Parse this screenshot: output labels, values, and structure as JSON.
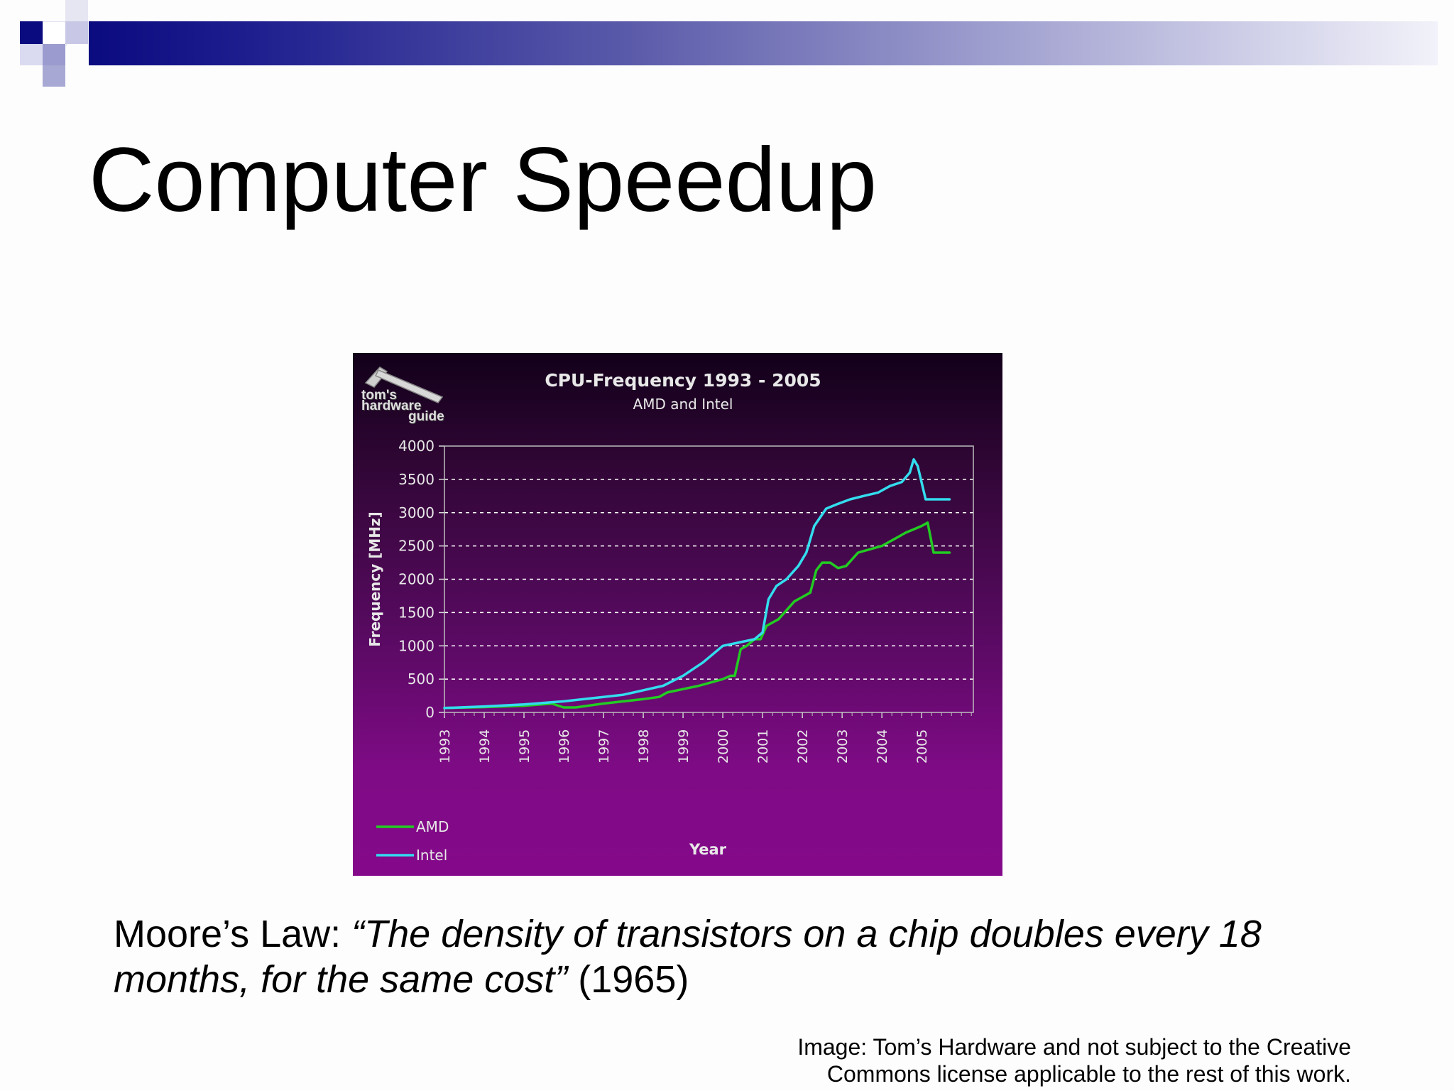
{
  "slide": {
    "title": "Computer Speedup",
    "moore_prefix": "Moore’s Law: ",
    "moore_quote": "“The density of transistors on a chip doubles every 18 months, for the same cost”",
    "moore_year": " (1965)",
    "credit_line1": "Image: Tom’s Hardware and not subject to the Creative",
    "credit_line2": "Commons license applicable to the rest of this work.",
    "accent_color": "#0b0b80"
  },
  "logo": {
    "line1": "tom's",
    "line2": "hardware",
    "line3": "guide"
  },
  "chart_data": {
    "type": "line",
    "title": "CPU-Frequency 1993 - 2005",
    "subtitle": "AMD and Intel",
    "xlabel": "Year",
    "ylabel": "Frequency [MHz]",
    "xlim": [
      1993,
      2006.3
    ],
    "ylim": [
      0,
      4000
    ],
    "y_ticks": [
      0,
      500,
      1000,
      1500,
      2000,
      2500,
      3000,
      3500,
      4000
    ],
    "x_ticks": [
      "1993",
      "1994",
      "1995",
      "1996",
      "1997",
      "1998",
      "1999",
      "2000",
      "2001",
      "2002",
      "2003",
      "2004",
      "2005"
    ],
    "grid": true,
    "legend_position": "bottom-left",
    "series": [
      {
        "name": "AMD",
        "color": "#22cc22",
        "points": [
          [
            1993.0,
            66
          ],
          [
            1994.0,
            80
          ],
          [
            1995.0,
            100
          ],
          [
            1995.7,
            133
          ],
          [
            1996.0,
            75
          ],
          [
            1996.3,
            75
          ],
          [
            1996.6,
            100
          ],
          [
            1997.0,
            133
          ],
          [
            1997.5,
            166
          ],
          [
            1998.0,
            200
          ],
          [
            1998.4,
            233
          ],
          [
            1998.6,
            300
          ],
          [
            1999.0,
            350
          ],
          [
            1999.4,
            400
          ],
          [
            1999.7,
            450
          ],
          [
            2000.0,
            500
          ],
          [
            2000.2,
            550
          ],
          [
            2000.3,
            550
          ],
          [
            2000.45,
            950
          ],
          [
            2000.6,
            1000
          ],
          [
            2000.8,
            1100
          ],
          [
            2000.95,
            1100
          ],
          [
            2001.1,
            1300
          ],
          [
            2001.4,
            1400
          ],
          [
            2001.6,
            1533
          ],
          [
            2001.8,
            1667
          ],
          [
            2002.0,
            1733
          ],
          [
            2002.2,
            1800
          ],
          [
            2002.35,
            2133
          ],
          [
            2002.5,
            2250
          ],
          [
            2002.7,
            2250
          ],
          [
            2002.9,
            2167
          ],
          [
            2003.1,
            2200
          ],
          [
            2003.4,
            2400
          ],
          [
            2003.7,
            2450
          ],
          [
            2004.0,
            2500
          ],
          [
            2004.3,
            2600
          ],
          [
            2004.6,
            2700
          ],
          [
            2004.8,
            2750
          ],
          [
            2005.0,
            2800
          ],
          [
            2005.15,
            2850
          ],
          [
            2005.3,
            2400
          ],
          [
            2005.5,
            2400
          ],
          [
            2005.7,
            2400
          ]
        ]
      },
      {
        "name": "Intel",
        "color": "#33ddee",
        "points": [
          [
            1993.0,
            66
          ],
          [
            1994.0,
            90
          ],
          [
            1995.0,
            120
          ],
          [
            1996.0,
            166
          ],
          [
            1997.0,
            233
          ],
          [
            1997.5,
            266
          ],
          [
            1998.0,
            333
          ],
          [
            1998.5,
            400
          ],
          [
            1999.0,
            550
          ],
          [
            1999.5,
            750
          ],
          [
            2000.0,
            1000
          ],
          [
            2000.4,
            1050
          ],
          [
            2000.8,
            1100
          ],
          [
            2001.0,
            1200
          ],
          [
            2001.15,
            1700
          ],
          [
            2001.35,
            1900
          ],
          [
            2001.6,
            2000
          ],
          [
            2001.9,
            2200
          ],
          [
            2002.1,
            2400
          ],
          [
            2002.3,
            2800
          ],
          [
            2002.6,
            3060
          ],
          [
            2002.9,
            3133
          ],
          [
            2003.2,
            3200
          ],
          [
            2003.6,
            3260
          ],
          [
            2003.9,
            3300
          ],
          [
            2004.2,
            3400
          ],
          [
            2004.5,
            3460
          ],
          [
            2004.7,
            3600
          ],
          [
            2004.8,
            3800
          ],
          [
            2004.9,
            3700
          ],
          [
            2005.1,
            3200
          ],
          [
            2005.3,
            3200
          ],
          [
            2005.5,
            3200
          ],
          [
            2005.7,
            3200
          ]
        ]
      }
    ]
  }
}
